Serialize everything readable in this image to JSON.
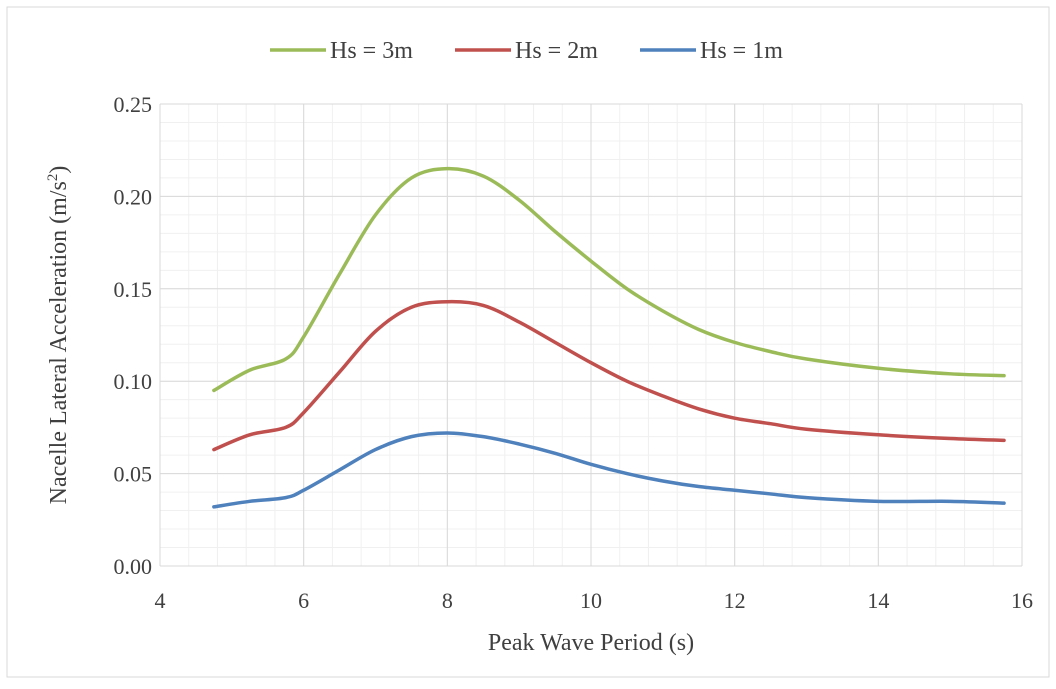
{
  "chart_data": {
    "type": "line",
    "title": "",
    "xlabel": "Peak Wave Period (s)",
    "ylabel": "Nacelle Lateral Acceleration (m/s²)",
    "xlim": [
      4,
      16
    ],
    "ylim": [
      0,
      0.25
    ],
    "x_ticks": [
      "4",
      "6",
      "8",
      "10",
      "12",
      "14",
      "16"
    ],
    "y_ticks": [
      "0.00",
      "0.05",
      "0.10",
      "0.15",
      "0.20",
      "0.25"
    ],
    "grid": true,
    "legend_position": "top",
    "series": [
      {
        "name": "Hs = 3m",
        "color": "#9bbb59",
        "x": [
          4.75,
          5.25,
          5.75,
          6.0,
          6.5,
          7.0,
          7.5,
          8.0,
          8.5,
          9.0,
          9.5,
          10.0,
          10.5,
          11.0,
          11.5,
          12.0,
          12.5,
          13.0,
          14.0,
          15.0,
          15.75
        ],
        "y": [
          0.095,
          0.106,
          0.112,
          0.124,
          0.158,
          0.19,
          0.21,
          0.215,
          0.211,
          0.198,
          0.181,
          0.165,
          0.15,
          0.138,
          0.128,
          0.121,
          0.116,
          0.112,
          0.107,
          0.104,
          0.103
        ]
      },
      {
        "name": "Hs = 2m",
        "color": "#c0504d",
        "x": [
          4.75,
          5.25,
          5.75,
          6.0,
          6.5,
          7.0,
          7.5,
          8.0,
          8.5,
          9.0,
          9.5,
          10.0,
          10.5,
          11.0,
          11.5,
          12.0,
          12.5,
          13.0,
          14.0,
          15.0,
          15.75
        ],
        "y": [
          0.063,
          0.071,
          0.075,
          0.083,
          0.105,
          0.127,
          0.14,
          0.143,
          0.141,
          0.132,
          0.121,
          0.11,
          0.1,
          0.092,
          0.085,
          0.08,
          0.077,
          0.074,
          0.071,
          0.069,
          0.068
        ]
      },
      {
        "name": "Hs = 1m",
        "color": "#4f81bd",
        "x": [
          4.75,
          5.25,
          5.75,
          6.0,
          6.5,
          7.0,
          7.5,
          8.0,
          8.5,
          9.0,
          9.5,
          10.0,
          10.5,
          11.0,
          11.5,
          12.0,
          12.5,
          13.0,
          14.0,
          15.0,
          15.75
        ],
        "y": [
          0.032,
          0.035,
          0.037,
          0.041,
          0.052,
          0.063,
          0.07,
          0.072,
          0.07,
          0.066,
          0.061,
          0.055,
          0.05,
          0.046,
          0.043,
          0.041,
          0.039,
          0.037,
          0.035,
          0.035,
          0.034
        ]
      }
    ]
  }
}
